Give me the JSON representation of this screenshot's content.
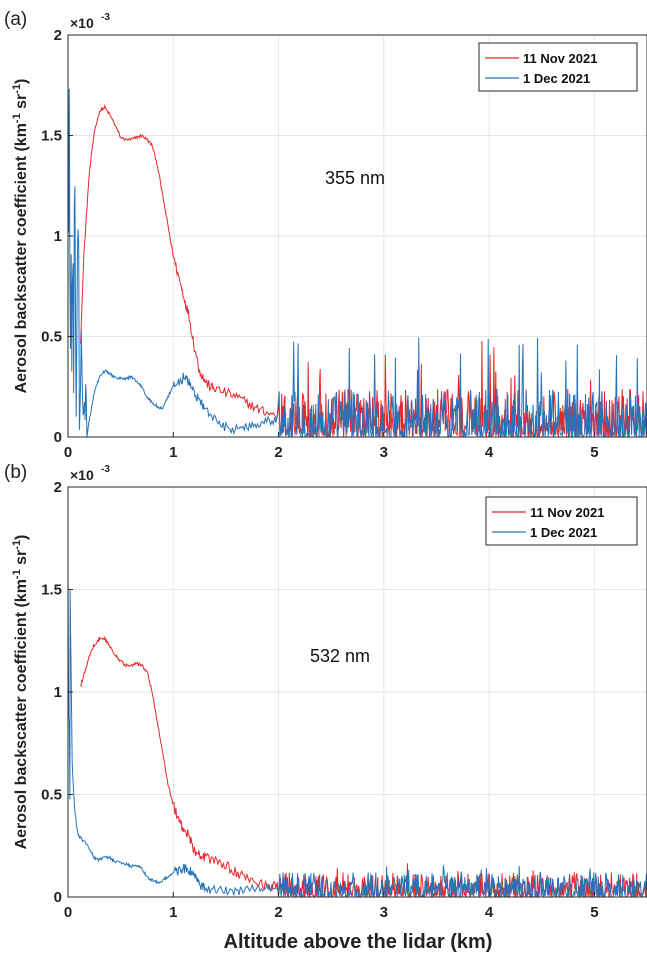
{
  "figure": {
    "xlabel": "Altitude above the lidar (km)"
  },
  "chart_data": [
    {
      "type": "line",
      "panel_label": "(a)",
      "annotation": "355 nm",
      "ylabel_main": "Aerosol backscatter coefficient (km",
      "ylabel_sup1": "-1",
      "ylabel_mid": " sr",
      "ylabel_sup2": "-1",
      "ylabel_end": ")",
      "y_multiplier": "×10",
      "y_multiplier_exp": "-3",
      "xlim": [
        0,
        5.5
      ],
      "ylim": [
        0,
        2
      ],
      "x_ticks": [
        0,
        1,
        2,
        3,
        4,
        5
      ],
      "x_tick_labels": [
        "0",
        "1",
        "2",
        "3",
        "4",
        "5"
      ],
      "y_ticks": [
        0,
        0.5,
        1,
        1.5,
        2
      ],
      "y_tick_labels": [
        "0",
        "0.5",
        "1",
        "1.5",
        "2"
      ],
      "grid": true,
      "legend_position": "top-right",
      "series": [
        {
          "name": "11 Nov 2021",
          "color": "#e8262a",
          "x": [
            0.12,
            0.15,
            0.2,
            0.25,
            0.3,
            0.35,
            0.4,
            0.45,
            0.5,
            0.55,
            0.6,
            0.65,
            0.7,
            0.75,
            0.8,
            0.85,
            0.9,
            0.95,
            1.0,
            1.05,
            1.1,
            1.15,
            1.2,
            1.25,
            1.3,
            1.35,
            1.4,
            1.5,
            1.6,
            1.7,
            1.8,
            1.9,
            2.0
          ],
          "y": [
            0.47,
            0.9,
            1.3,
            1.52,
            1.62,
            1.64,
            1.6,
            1.55,
            1.49,
            1.48,
            1.48,
            1.49,
            1.5,
            1.48,
            1.45,
            1.35,
            1.2,
            1.05,
            0.9,
            0.8,
            0.7,
            0.6,
            0.45,
            0.33,
            0.28,
            0.25,
            0.24,
            0.22,
            0.2,
            0.17,
            0.14,
            0.12,
            0.1
          ],
          "noise_from": 2.0,
          "noise_to": 5.5,
          "noise_level_mean": 0.1,
          "noise_peak_max": 0.5
        },
        {
          "name": "1 Dec 2021",
          "color": "#2773b9",
          "x": [
            0.18,
            0.2,
            0.25,
            0.3,
            0.35,
            0.4,
            0.45,
            0.5,
            0.55,
            0.6,
            0.65,
            0.7,
            0.75,
            0.8,
            0.85,
            0.9,
            0.95,
            1.0,
            1.05,
            1.1,
            1.15,
            1.2,
            1.25,
            1.3,
            1.4,
            1.5,
            1.6,
            1.7,
            1.8,
            1.9,
            2.0
          ],
          "y": [
            0.0,
            0.08,
            0.22,
            0.3,
            0.33,
            0.31,
            0.3,
            0.29,
            0.29,
            0.3,
            0.28,
            0.25,
            0.2,
            0.17,
            0.15,
            0.14,
            0.2,
            0.25,
            0.27,
            0.3,
            0.27,
            0.22,
            0.18,
            0.14,
            0.08,
            0.05,
            0.04,
            0.05,
            0.07,
            0.08,
            0.09
          ],
          "near_zero_spike_max": 2.0,
          "noise_from": 2.0,
          "noise_to": 5.5,
          "noise_level_mean": 0.1,
          "noise_peak_max": 0.52
        }
      ]
    },
    {
      "type": "line",
      "panel_label": "(b)",
      "annotation": "532 nm",
      "ylabel_main": "Aerosol backscatter coefficient (km",
      "ylabel_sup1": "-1",
      "ylabel_mid": " sr",
      "ylabel_sup2": "-1",
      "ylabel_end": ")",
      "y_multiplier": "×10",
      "y_multiplier_exp": "-3",
      "xlim": [
        0,
        5.5
      ],
      "ylim": [
        0,
        2
      ],
      "x_ticks": [
        0,
        1,
        2,
        3,
        4,
        5
      ],
      "x_tick_labels": [
        "0",
        "1",
        "2",
        "3",
        "4",
        "5"
      ],
      "y_ticks": [
        0,
        0.5,
        1,
        1.5,
        2
      ],
      "y_tick_labels": [
        "0",
        "0.5",
        "1",
        "1.5",
        "2"
      ],
      "grid": true,
      "legend_position": "top-right",
      "series": [
        {
          "name": "11 Nov 2021",
          "color": "#e8262a",
          "x": [
            0.12,
            0.15,
            0.2,
            0.25,
            0.3,
            0.35,
            0.4,
            0.45,
            0.5,
            0.55,
            0.6,
            0.65,
            0.7,
            0.75,
            0.8,
            0.85,
            0.9,
            0.95,
            1.0,
            1.05,
            1.1,
            1.15,
            1.2,
            1.25,
            1.3,
            1.4,
            1.5,
            1.6,
            1.7,
            1.8,
            1.9,
            2.0
          ],
          "y": [
            1.03,
            1.08,
            1.17,
            1.23,
            1.26,
            1.26,
            1.22,
            1.18,
            1.15,
            1.13,
            1.13,
            1.14,
            1.13,
            1.1,
            1.0,
            0.85,
            0.7,
            0.55,
            0.45,
            0.38,
            0.33,
            0.3,
            0.23,
            0.2,
            0.19,
            0.18,
            0.15,
            0.12,
            0.09,
            0.07,
            0.06,
            0.05
          ],
          "noise_from": 2.0,
          "noise_to": 5.5,
          "noise_level_mean": 0.05,
          "noise_peak_max": 0.17
        },
        {
          "name": "1 Dec 2021",
          "color": "#2773b9",
          "x": [
            0.02,
            0.04,
            0.06,
            0.08,
            0.1,
            0.15,
            0.2,
            0.25,
            0.3,
            0.35,
            0.4,
            0.45,
            0.5,
            0.55,
            0.6,
            0.65,
            0.7,
            0.75,
            0.8,
            0.85,
            0.9,
            0.95,
            1.0,
            1.05,
            1.1,
            1.15,
            1.2,
            1.25,
            1.3,
            1.4,
            1.5,
            1.6,
            1.7,
            1.8,
            1.9,
            2.0
          ],
          "y": [
            1.5,
            0.65,
            0.45,
            0.35,
            0.3,
            0.27,
            0.24,
            0.19,
            0.18,
            0.2,
            0.19,
            0.17,
            0.17,
            0.16,
            0.15,
            0.15,
            0.14,
            0.1,
            0.08,
            0.07,
            0.08,
            0.1,
            0.12,
            0.13,
            0.14,
            0.13,
            0.1,
            0.06,
            0.04,
            0.03,
            0.03,
            0.03,
            0.04,
            0.04,
            0.04,
            0.04
          ],
          "near_zero_spike_max": 2.0,
          "noise_from": 2.0,
          "noise_to": 5.5,
          "noise_level_mean": 0.05,
          "noise_peak_max": 0.16
        }
      ]
    }
  ]
}
